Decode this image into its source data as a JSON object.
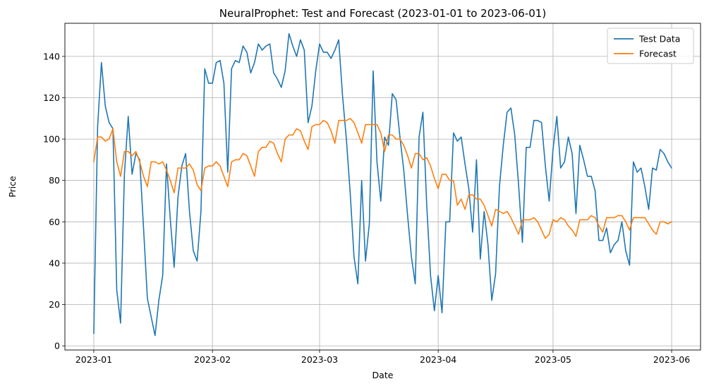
{
  "chart_data": {
    "type": "line",
    "title": "NeuralProphet: Test and Forecast (2023-01-01 to 2023-06-01)",
    "xlabel": "Date",
    "ylabel": "Price",
    "x_range": [
      "2023-01-01",
      "2023-06-01"
    ],
    "ylim": [
      -2,
      156
    ],
    "x_ticks": [
      "2023-01",
      "2023-02",
      "2023-03",
      "2023-04",
      "2023-05",
      "2023-06"
    ],
    "y_ticks": [
      0,
      20,
      40,
      60,
      80,
      100,
      120,
      140
    ],
    "grid": true,
    "legend_position": "top-right",
    "x": [
      "2023-01-01",
      "2023-01-02",
      "2023-01-03",
      "2023-01-04",
      "2023-01-05",
      "2023-01-06",
      "2023-01-07",
      "2023-01-08",
      "2023-01-09",
      "2023-01-10",
      "2023-01-11",
      "2023-01-12",
      "2023-01-13",
      "2023-01-14",
      "2023-01-15",
      "2023-01-16",
      "2023-01-17",
      "2023-01-18",
      "2023-01-19",
      "2023-01-20",
      "2023-01-21",
      "2023-01-22",
      "2023-01-23",
      "2023-01-24",
      "2023-01-25",
      "2023-01-26",
      "2023-01-27",
      "2023-01-28",
      "2023-01-29",
      "2023-01-30",
      "2023-01-31",
      "2023-02-01",
      "2023-02-02",
      "2023-02-03",
      "2023-02-04",
      "2023-02-05",
      "2023-02-06",
      "2023-02-07",
      "2023-02-08",
      "2023-02-09",
      "2023-02-10",
      "2023-02-11",
      "2023-02-12",
      "2023-02-13",
      "2023-02-14",
      "2023-02-15",
      "2023-02-16",
      "2023-02-17",
      "2023-02-18",
      "2023-02-19",
      "2023-02-20",
      "2023-02-21",
      "2023-02-22",
      "2023-02-23",
      "2023-02-24",
      "2023-02-25",
      "2023-02-26",
      "2023-02-27",
      "2023-02-28",
      "2023-03-01",
      "2023-03-02",
      "2023-03-03",
      "2023-03-04",
      "2023-03-05",
      "2023-03-06",
      "2023-03-07",
      "2023-03-08",
      "2023-03-09",
      "2023-03-10",
      "2023-03-11",
      "2023-03-12",
      "2023-03-13",
      "2023-03-14",
      "2023-03-15",
      "2023-03-16",
      "2023-03-17",
      "2023-03-18",
      "2023-03-19",
      "2023-03-20",
      "2023-03-21",
      "2023-03-22",
      "2023-03-23",
      "2023-03-24",
      "2023-03-25",
      "2023-03-26",
      "2023-03-27",
      "2023-03-28",
      "2023-03-29",
      "2023-03-30",
      "2023-03-31",
      "2023-04-01",
      "2023-04-02",
      "2023-04-03",
      "2023-04-04",
      "2023-04-05",
      "2023-04-06",
      "2023-04-07",
      "2023-04-08",
      "2023-04-09",
      "2023-04-10",
      "2023-04-11",
      "2023-04-12",
      "2023-04-13",
      "2023-04-14",
      "2023-04-15",
      "2023-04-16",
      "2023-04-17",
      "2023-04-18",
      "2023-04-19",
      "2023-04-20",
      "2023-04-21",
      "2023-04-22",
      "2023-04-23",
      "2023-04-24",
      "2023-04-25",
      "2023-04-26",
      "2023-04-27",
      "2023-04-28",
      "2023-04-29",
      "2023-04-30",
      "2023-05-01",
      "2023-05-02",
      "2023-05-03",
      "2023-05-04",
      "2023-05-05",
      "2023-05-06",
      "2023-05-07",
      "2023-05-08",
      "2023-05-09",
      "2023-05-10",
      "2023-05-11",
      "2023-05-12",
      "2023-05-13",
      "2023-05-14",
      "2023-05-15",
      "2023-05-16",
      "2023-05-17",
      "2023-05-18",
      "2023-05-19",
      "2023-05-20",
      "2023-05-21",
      "2023-05-22",
      "2023-05-23",
      "2023-05-24",
      "2023-05-25",
      "2023-05-26",
      "2023-05-27",
      "2023-05-28",
      "2023-05-29",
      "2023-05-30",
      "2023-05-31",
      "2023-06-01"
    ],
    "series": [
      {
        "name": "Test Data",
        "color": "#1f77b4",
        "values": [
          6,
          106,
          137,
          116,
          108,
          105,
          27,
          11,
          83,
          111,
          83,
          93,
          90,
          57,
          23,
          14,
          5,
          22,
          34,
          88,
          61,
          38,
          72,
          87,
          93,
          65,
          46,
          41,
          65,
          134,
          127,
          127,
          137,
          138,
          127,
          84,
          134,
          138,
          137,
          145,
          142,
          132,
          137,
          146,
          143,
          145,
          146,
          132,
          129,
          125,
          133,
          151,
          145,
          140,
          148,
          143,
          108,
          116,
          133,
          146,
          142,
          142,
          139,
          143,
          148,
          121,
          100,
          74,
          43,
          30,
          80,
          41,
          59,
          133,
          89,
          70,
          101,
          97,
          122,
          119,
          101,
          85,
          63,
          43,
          30,
          101,
          113,
          68,
          34,
          17,
          34,
          16,
          60,
          60,
          103,
          99,
          101,
          88,
          76,
          55,
          90,
          42,
          65,
          49,
          22,
          35,
          77,
          97,
          113,
          115,
          102,
          78,
          50,
          96,
          96,
          109,
          109,
          108,
          87,
          70,
          95,
          111,
          86,
          89,
          101,
          93,
          64,
          97,
          90,
          82,
          82,
          75,
          51,
          51,
          57,
          45,
          49,
          51,
          60,
          46,
          39,
          89,
          84,
          86,
          77,
          66,
          86,
          85,
          95,
          93,
          89,
          86
        ]
      },
      {
        "name": "Forecast",
        "color": "#ff7f0e",
        "values": [
          89,
          101,
          101,
          99,
          100,
          105,
          89,
          82,
          94,
          94,
          92,
          94,
          89,
          82,
          77,
          89,
          89,
          88,
          89,
          85,
          80,
          74,
          86,
          86,
          86,
          88,
          85,
          78,
          75,
          86,
          87,
          87,
          89,
          87,
          82,
          77,
          89,
          90,
          90,
          93,
          92,
          87,
          82,
          94,
          96,
          96,
          99,
          98,
          93,
          89,
          100,
          102,
          102,
          105,
          104,
          99,
          95,
          106,
          107,
          107,
          109,
          108,
          104,
          98,
          109,
          109,
          109,
          110,
          108,
          103,
          98,
          107,
          107,
          107,
          107,
          103,
          94,
          102,
          102,
          100,
          100,
          97,
          92,
          86,
          93,
          93,
          90,
          91,
          87,
          81,
          76,
          83,
          83,
          80,
          80,
          68,
          71,
          66,
          73,
          73,
          71,
          71,
          68,
          63,
          58,
          66,
          65,
          64,
          65,
          62,
          58,
          54,
          61,
          61,
          61,
          62,
          60,
          56,
          52,
          54,
          61,
          60,
          62,
          61,
          58,
          56,
          53,
          61,
          61,
          61,
          63,
          62,
          58,
          55,
          62,
          62,
          62,
          63,
          63,
          60,
          56,
          62,
          62,
          62,
          62,
          59,
          56,
          54,
          60,
          60,
          59,
          60
        ]
      }
    ]
  }
}
